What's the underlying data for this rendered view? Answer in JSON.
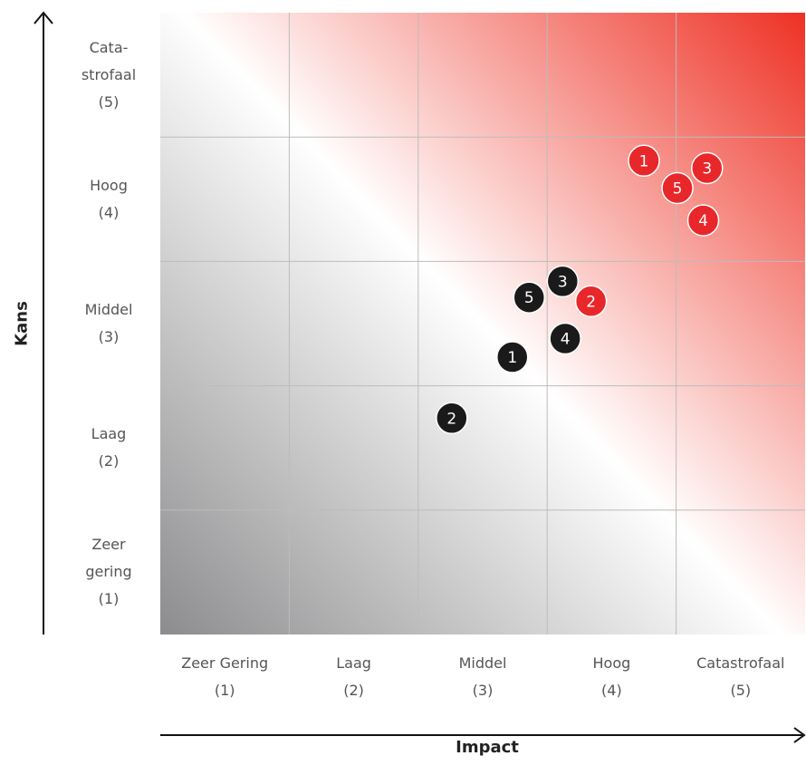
{
  "chart_data": {
    "type": "scatter",
    "xlabel": "Impact",
    "ylabel": "Kans",
    "x_categories": [
      {
        "name": "Zeer Gering",
        "num": "(1)"
      },
      {
        "name": "Laag",
        "num": "(2)"
      },
      {
        "name": "Middel",
        "num": "(3)"
      },
      {
        "name": "Hoog",
        "num": "(4)"
      },
      {
        "name": "Catastrofaal",
        "num": "(5)"
      }
    ],
    "y_categories": [
      {
        "lines": [
          "Zeer",
          "gering",
          "(1)"
        ]
      },
      {
        "lines": [
          "Laag",
          "(2)"
        ]
      },
      {
        "lines": [
          "Middel",
          "(3)"
        ]
      },
      {
        "lines": [
          "Hoog",
          "(4)"
        ]
      },
      {
        "lines": [
          "Cata-",
          "strofaal",
          "(5)"
        ]
      }
    ],
    "xlim": [
      0.5,
      5.5
    ],
    "ylim": [
      0.5,
      5.5
    ],
    "grid": true,
    "background": "gradient from grey (bottom-left) through white (diagonal) to red (top-right)",
    "series": [
      {
        "color": "#1a1a1a",
        "points": [
          {
            "label": "1",
            "x": 3.23,
            "y": 2.73
          },
          {
            "label": "2",
            "x": 2.76,
            "y": 2.24
          },
          {
            "label": "3",
            "x": 3.62,
            "y": 3.34
          },
          {
            "label": "4",
            "x": 3.64,
            "y": 2.88
          },
          {
            "label": "5",
            "x": 3.36,
            "y": 3.21
          }
        ]
      },
      {
        "color": "#e8272a",
        "points": [
          {
            "label": "1",
            "x": 4.25,
            "y": 4.31
          },
          {
            "label": "2",
            "x": 3.84,
            "y": 3.18
          },
          {
            "label": "3",
            "x": 4.74,
            "y": 4.25
          },
          {
            "label": "4",
            "x": 4.71,
            "y": 3.83
          },
          {
            "label": "5",
            "x": 4.51,
            "y": 4.09
          }
        ]
      }
    ],
    "colors": {
      "red": "#ee3124",
      "grey": "#8c8c8e",
      "grid": "#bcbcbc"
    }
  }
}
